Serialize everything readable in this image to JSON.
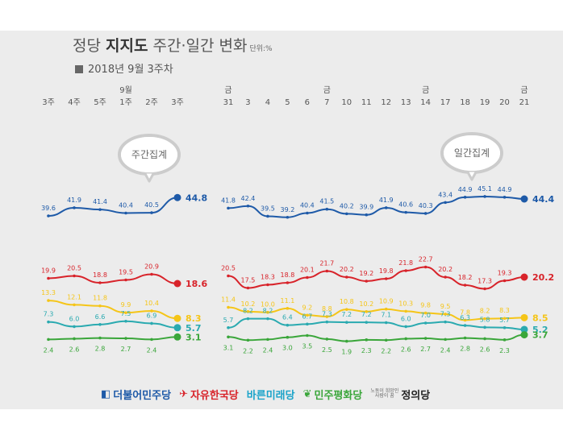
{
  "header": {
    "title_prefix": "정당 ",
    "title_bold": "지지도",
    "title_suffix": " 주간·일간 변화",
    "unit": "단위:%",
    "subtitle": "2018년 9월 3주차"
  },
  "bubbles": {
    "weekly": "주간집계",
    "daily": "일간집계"
  },
  "chart_data": [
    {
      "type": "line",
      "name": "weekly",
      "x_labels": [
        {
          "top": "",
          "label": "3주"
        },
        {
          "top": "",
          "label": "4주"
        },
        {
          "top": "",
          "label": "5주"
        },
        {
          "top": "9월",
          "label": "1주"
        },
        {
          "top": "",
          "label": "2주"
        },
        {
          "top": "",
          "label": "3주"
        }
      ],
      "series": [
        {
          "values": [
            39.6,
            41.9,
            41.4,
            40.4,
            40.5,
            44.8
          ],
          "color": "#1e5aa8",
          "labels": [
            "39.6",
            "41.9",
            "41.4",
            "40.4",
            "40.5",
            "44.8"
          ],
          "last_label": "44.8"
        },
        {
          "values": [
            19.9,
            20.5,
            18.8,
            19.5,
            20.9,
            18.6
          ],
          "color": "#d8232a",
          "labels": [
            "19.9",
            "20.5",
            "18.8",
            "19.5",
            "20.9",
            "18.6"
          ],
          "last_label": "18.6"
        },
        {
          "values": [
            13.3,
            12.1,
            11.8,
            9.9,
            10.4,
            8.3
          ],
          "color": "#f5c518",
          "labels": [
            "13.3",
            "12.1",
            "11.8",
            "9.9",
            "10.4",
            "8.3"
          ],
          "last_label": "8.3"
        },
        {
          "values": [
            7.3,
            6.0,
            6.6,
            7.5,
            6.9,
            5.7
          ],
          "color": "#2aaab0",
          "labels": [
            "7.3",
            "6.0",
            "6.6",
            "7.5",
            "6.9",
            "5.7"
          ],
          "last_label": "5.7"
        },
        {
          "values": [
            2.4,
            2.6,
            2.8,
            2.7,
            2.4,
            3.1
          ],
          "color": "#3aa63a",
          "labels": [
            "2.4",
            "2.6",
            "2.8",
            "2.7",
            "2.4",
            "3.1"
          ],
          "last_label": "3.1"
        }
      ]
    },
    {
      "type": "line",
      "name": "daily",
      "x_labels": [
        {
          "top": "금",
          "label": "31"
        },
        {
          "top": "",
          "label": "3"
        },
        {
          "top": "",
          "label": "4"
        },
        {
          "top": "",
          "label": "5"
        },
        {
          "top": "",
          "label": "6"
        },
        {
          "top": "금",
          "label": "7"
        },
        {
          "top": "",
          "label": "10"
        },
        {
          "top": "",
          "label": "11"
        },
        {
          "top": "",
          "label": "12"
        },
        {
          "top": "",
          "label": "13"
        },
        {
          "top": "금",
          "label": "14"
        },
        {
          "top": "",
          "label": "17"
        },
        {
          "top": "",
          "label": "18"
        },
        {
          "top": "",
          "label": "19"
        },
        {
          "top": "",
          "label": "20"
        },
        {
          "top": "금",
          "label": "21"
        }
      ],
      "series": [
        {
          "values": [
            41.8,
            42.4,
            39.5,
            39.2,
            40.4,
            41.5,
            40.2,
            39.9,
            41.9,
            40.6,
            40.3,
            43.4,
            44.9,
            45.1,
            44.9,
            44.4
          ],
          "color": "#1e5aa8",
          "last_label": "44.4"
        },
        {
          "values": [
            20.5,
            17.5,
            18.3,
            18.8,
            20.1,
            21.7,
            20.2,
            19.2,
            19.8,
            21.8,
            22.7,
            20.2,
            18.2,
            17.3,
            19.3,
            20.2
          ],
          "color": "#d8232a",
          "last_label": "20.2"
        },
        {
          "values": [
            11.4,
            10.2,
            10.0,
            11.1,
            9.2,
            8.8,
            10.8,
            10.2,
            10.9,
            10.3,
            9.8,
            9.5,
            7.8,
            8.2,
            8.3,
            8.5
          ],
          "color": "#f5c518",
          "last_label": "8.5"
        },
        {
          "values": [
            5.7,
            8.2,
            8.2,
            6.4,
            6.7,
            7.3,
            7.2,
            7.2,
            7.1,
            6.0,
            7.0,
            7.3,
            6.3,
            5.8,
            5.7,
            5.2
          ],
          "color": "#2aaab0",
          "last_label": "5.2"
        },
        {
          "values": [
            3.1,
            2.2,
            2.4,
            3.0,
            3.5,
            2.5,
            1.9,
            2.3,
            2.2,
            2.6,
            2.7,
            2.4,
            2.8,
            2.6,
            2.3,
            3.7
          ],
          "color": "#3aa63a",
          "last_label": "3.7"
        }
      ]
    }
  ],
  "legend": [
    {
      "mark": "◧",
      "name": "더불어민주당",
      "color": "#1e5aa8"
    },
    {
      "mark": "✈",
      "name": "자유한국당",
      "color": "#d8232a"
    },
    {
      "mark": "",
      "name": "바른미래당",
      "color": "#1aa3c9"
    },
    {
      "mark": "❦",
      "name": "민주평화당",
      "color": "#3aa63a"
    },
    {
      "mark": "",
      "small": "노동이 희망인\n사람이 꿈",
      "name": "정의당",
      "color": "#222222"
    }
  ]
}
